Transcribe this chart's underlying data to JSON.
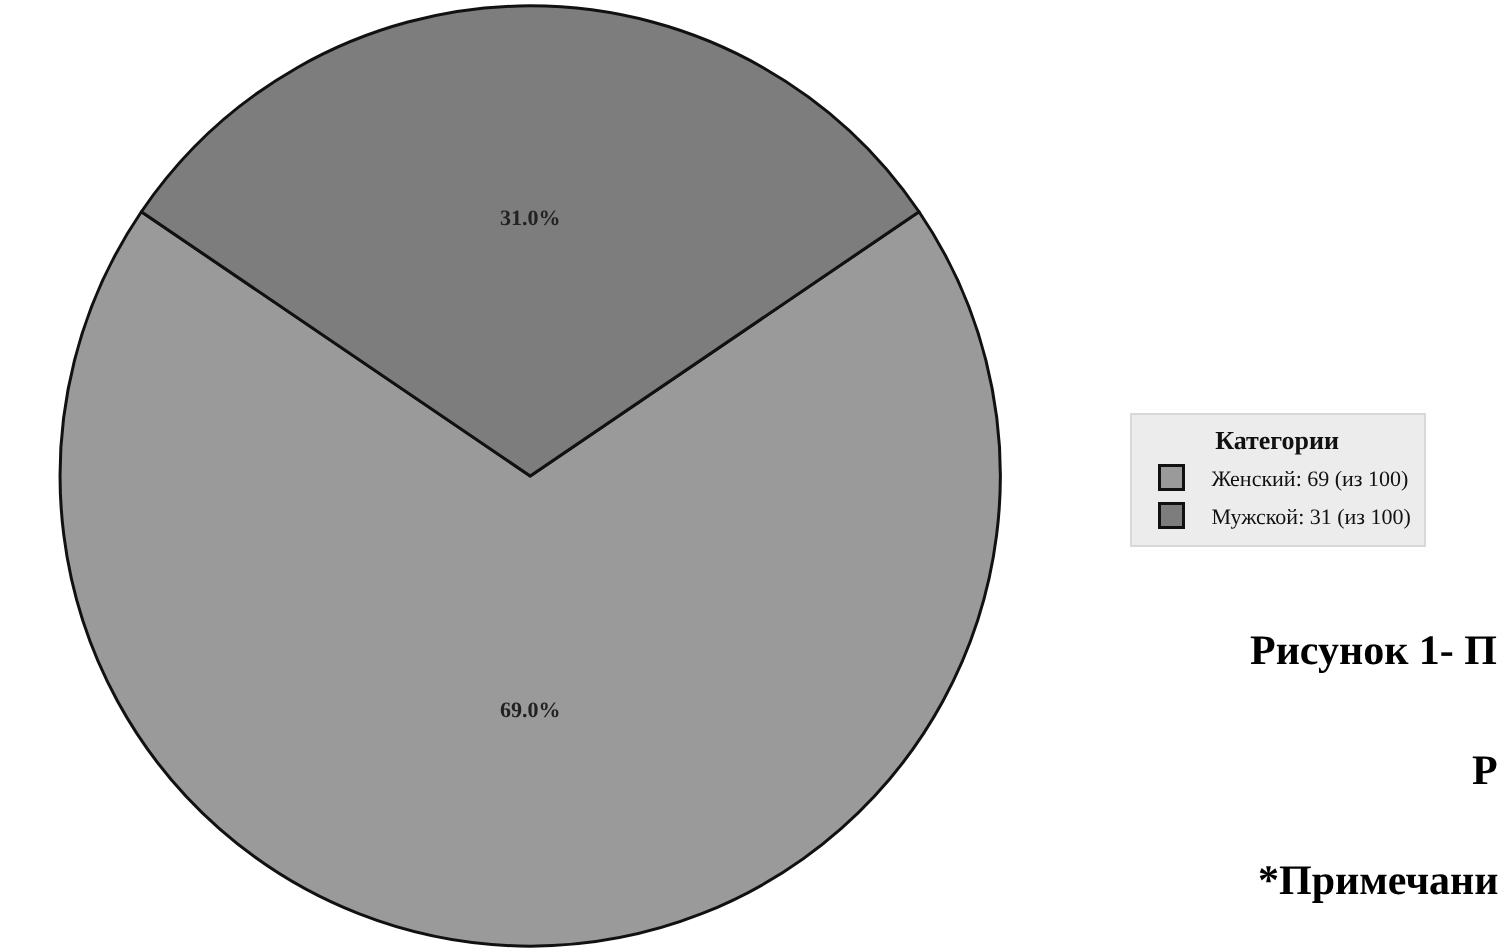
{
  "chart_data": {
    "type": "pie",
    "legend_title": "Категории",
    "categories": [
      "Женский: 69 (из 100)",
      "Мужской: 31 (из 100)"
    ],
    "values": [
      69,
      31
    ],
    "colors": [
      "#9a9a9a",
      "#7d7d7d"
    ],
    "value_labels": [
      "69.0%",
      "31.0%"
    ],
    "legend": "right",
    "annotations": [
      "Рисунок 1- П",
      "Р",
      "*Примечани"
    ]
  }
}
